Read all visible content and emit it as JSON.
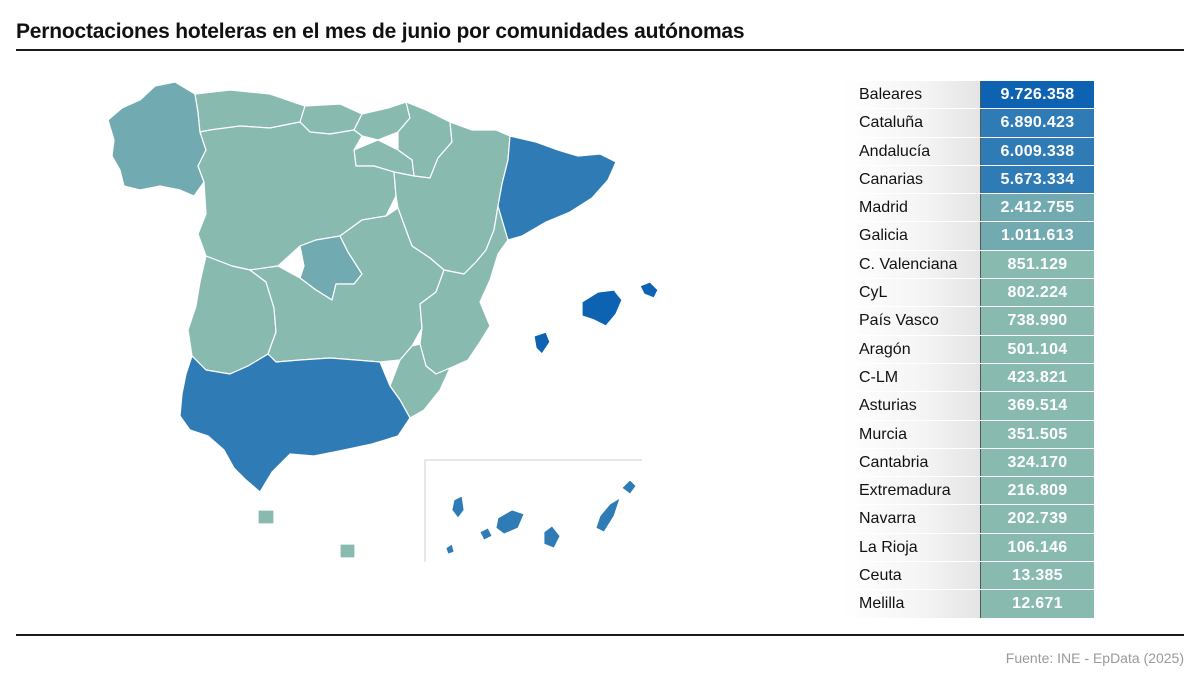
{
  "title": "Pernoctaciones hoteleras en el mes de junio por comunidades autónomas",
  "source": "Fuente: INE - EpData (2025)",
  "colors": {
    "very_high": "#0e62b2",
    "high": "#2f7bb6",
    "medium": "#72aab2",
    "low": "#88bab0",
    "border": "#ffffff",
    "inset_border": "#cfcfcf"
  },
  "regions": [
    {
      "name": "Baleares",
      "value": "9.726.358",
      "level": "very_high"
    },
    {
      "name": "Cataluña",
      "value": "6.890.423",
      "level": "high"
    },
    {
      "name": "Andalucía",
      "value": "6.009.338",
      "level": "high"
    },
    {
      "name": "Canarias",
      "value": "5.673.334",
      "level": "high"
    },
    {
      "name": "Madrid",
      "value": "2.412.755",
      "level": "medium"
    },
    {
      "name": "Galicia",
      "value": "1.011.613",
      "level": "medium"
    },
    {
      "name": "C. Valenciana",
      "value": "851.129",
      "level": "low"
    },
    {
      "name": "CyL",
      "value": "802.224",
      "level": "low"
    },
    {
      "name": "País Vasco",
      "value": "738.990",
      "level": "low"
    },
    {
      "name": "Aragón",
      "value": "501.104",
      "level": "low"
    },
    {
      "name": "C-LM",
      "value": "423.821",
      "level": "low"
    },
    {
      "name": "Asturias",
      "value": "369.514",
      "level": "low"
    },
    {
      "name": "Murcia",
      "value": "351.505",
      "level": "low"
    },
    {
      "name": "Cantabria",
      "value": "324.170",
      "level": "low"
    },
    {
      "name": "Extremadura",
      "value": "216.809",
      "level": "low"
    },
    {
      "name": "Navarra",
      "value": "202.739",
      "level": "low"
    },
    {
      "name": "La Rioja",
      "value": "106.146",
      "level": "low"
    },
    {
      "name": "Ceuta",
      "value": "13.385",
      "level": "low"
    },
    {
      "name": "Melilla",
      "value": "12.671",
      "level": "low"
    }
  ]
}
